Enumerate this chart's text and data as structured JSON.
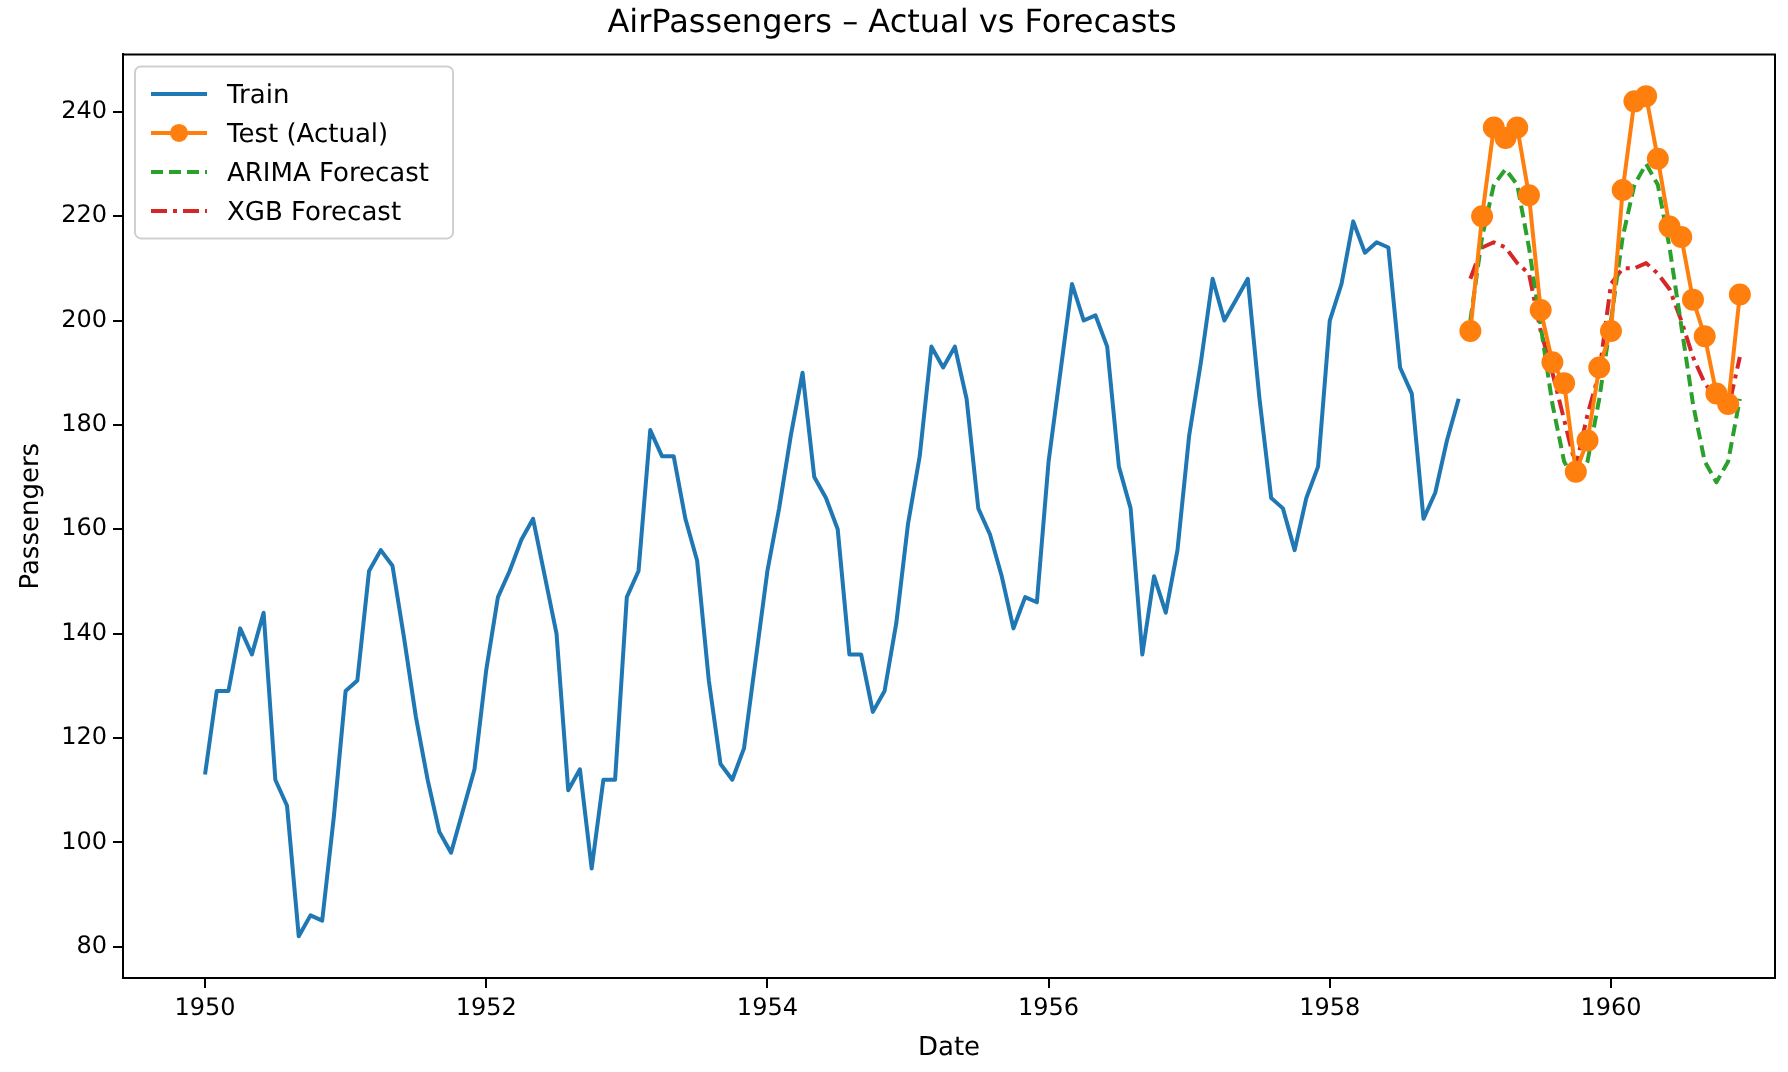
{
  "chart_data": {
    "type": "line",
    "title": "AirPassengers – Actual vs Forecasts",
    "xlabel": "Date",
    "ylabel": "Passengers",
    "xlim": [
      "1949-06",
      "1961-03"
    ],
    "xticks": [
      "1950",
      "1952",
      "1954",
      "1956",
      "1958",
      "1960"
    ],
    "ylim": [
      74,
      251
    ],
    "yticks": [
      80,
      100,
      120,
      140,
      160,
      180,
      200,
      220,
      240
    ],
    "grid": false,
    "legend": "top left",
    "series": [
      {
        "name": "Train",
        "color": "#1f77b4",
        "line_style": "solid",
        "marker": "none",
        "x": [
          "1950-01",
          "1950-02",
          "1950-03",
          "1950-04",
          "1950-05",
          "1950-06",
          "1950-07",
          "1950-08",
          "1950-09",
          "1950-10",
          "1950-11",
          "1950-12",
          "1951-01",
          "1951-02",
          "1951-03",
          "1951-04",
          "1951-05",
          "1951-06",
          "1951-07",
          "1951-08",
          "1951-09",
          "1951-10",
          "1951-11",
          "1951-12",
          "1952-01",
          "1952-02",
          "1952-03",
          "1952-04",
          "1952-05",
          "1952-06",
          "1952-07",
          "1952-08",
          "1952-09",
          "1952-10",
          "1952-11",
          "1952-12",
          "1953-01",
          "1953-02",
          "1953-03",
          "1953-04",
          "1953-05",
          "1953-06",
          "1953-07",
          "1953-08",
          "1953-09",
          "1953-10",
          "1953-11",
          "1953-12",
          "1954-01",
          "1954-02",
          "1954-03",
          "1954-04",
          "1954-05",
          "1954-06",
          "1954-07",
          "1954-08",
          "1954-09",
          "1954-10",
          "1954-11",
          "1954-12",
          "1955-01",
          "1955-02",
          "1955-03",
          "1955-04",
          "1955-05",
          "1955-06",
          "1955-07",
          "1955-08",
          "1955-09",
          "1955-10",
          "1955-11",
          "1955-12",
          "1956-01",
          "1956-02",
          "1956-03",
          "1956-04",
          "1956-05",
          "1956-06",
          "1956-07",
          "1956-08",
          "1956-09",
          "1956-10",
          "1956-11",
          "1956-12",
          "1957-01",
          "1957-02",
          "1957-03",
          "1957-04",
          "1957-05",
          "1957-06",
          "1957-07",
          "1957-08",
          "1957-09",
          "1957-10",
          "1957-11",
          "1957-12",
          "1958-01",
          "1958-02",
          "1958-03",
          "1958-04",
          "1958-05",
          "1958-06",
          "1958-07",
          "1958-08",
          "1958-09",
          "1958-10",
          "1958-11",
          "1958-12"
        ],
        "values": [
          113,
          129,
          129,
          141,
          136,
          144,
          112,
          107,
          82,
          86,
          85,
          105,
          129,
          131,
          152,
          156,
          153,
          139,
          124,
          112,
          102,
          98,
          106,
          114,
          133,
          147,
          152,
          158,
          162,
          151,
          140,
          110,
          114,
          95,
          112,
          112,
          147,
          152,
          179,
          174,
          174,
          162,
          154,
          131,
          115,
          112,
          118,
          135,
          152,
          164,
          178,
          190,
          170,
          166,
          160,
          136,
          136,
          125,
          129,
          142,
          161,
          174,
          195,
          191,
          195,
          185,
          164,
          159,
          151,
          141,
          147,
          146,
          173,
          190,
          207,
          200,
          201,
          195,
          172,
          164,
          136,
          151,
          144,
          156,
          178,
          192,
          208,
          200,
          204,
          208,
          185,
          166,
          164,
          156,
          166,
          172,
          200,
          207,
          219,
          213,
          215,
          214,
          191,
          186,
          162,
          167,
          177,
          185
        ]
      },
      {
        "name": "Test (Actual)",
        "color": "#ff7f0e",
        "line_style": "solid",
        "marker": "circle",
        "x": [
          "1959-01",
          "1959-02",
          "1959-03",
          "1959-04",
          "1959-05",
          "1959-06",
          "1959-07",
          "1959-08",
          "1959-09",
          "1959-10",
          "1959-11",
          "1959-12",
          "1960-01",
          "1960-02",
          "1960-03",
          "1960-04",
          "1960-05",
          "1960-06",
          "1960-07",
          "1960-08",
          "1960-09",
          "1960-10",
          "1960-11",
          "1960-12"
        ],
        "values": [
          198,
          220,
          237,
          235,
          237,
          224,
          202,
          192,
          188,
          171,
          177,
          191,
          198,
          225,
          242,
          243,
          231,
          218,
          216,
          204,
          197,
          186,
          184,
          205
        ]
      },
      {
        "name": "ARIMA Forecast",
        "color": "#2ca02c",
        "line_style": "dashed",
        "marker": "none",
        "x": [
          "1959-01",
          "1959-02",
          "1959-03",
          "1959-04",
          "1959-05",
          "1959-06",
          "1959-07",
          "1959-08",
          "1959-09",
          "1959-10",
          "1959-11",
          "1959-12",
          "1960-01",
          "1960-02",
          "1960-03",
          "1960-04",
          "1960-05",
          "1960-06",
          "1960-07",
          "1960-08",
          "1960-09",
          "1960-10",
          "1960-11",
          "1960-12"
        ],
        "values": [
          200,
          216,
          226,
          229,
          226,
          214,
          199,
          184,
          173,
          169,
          173,
          185,
          200,
          216,
          226,
          230,
          226,
          214,
          199,
          184,
          173,
          169,
          173,
          185
        ]
      },
      {
        "name": "XGB Forecast",
        "color": "#d62728",
        "line_style": "dashdot",
        "marker": "none",
        "x": [
          "1959-01",
          "1959-02",
          "1959-03",
          "1959-04",
          "1959-05",
          "1959-06",
          "1959-07",
          "1959-08",
          "1959-09",
          "1959-10",
          "1959-11",
          "1959-12",
          "1960-01",
          "1960-02",
          "1960-03",
          "1960-04",
          "1960-05",
          "1960-06",
          "1960-07",
          "1960-08",
          "1960-09",
          "1960-10",
          "1960-11",
          "1960-12"
        ],
        "values": [
          208,
          214,
          215,
          214,
          211,
          209,
          198,
          190,
          181,
          172,
          182,
          190,
          207,
          210,
          210,
          211,
          209,
          206,
          200,
          193,
          188,
          185,
          183,
          193
        ]
      }
    ]
  }
}
